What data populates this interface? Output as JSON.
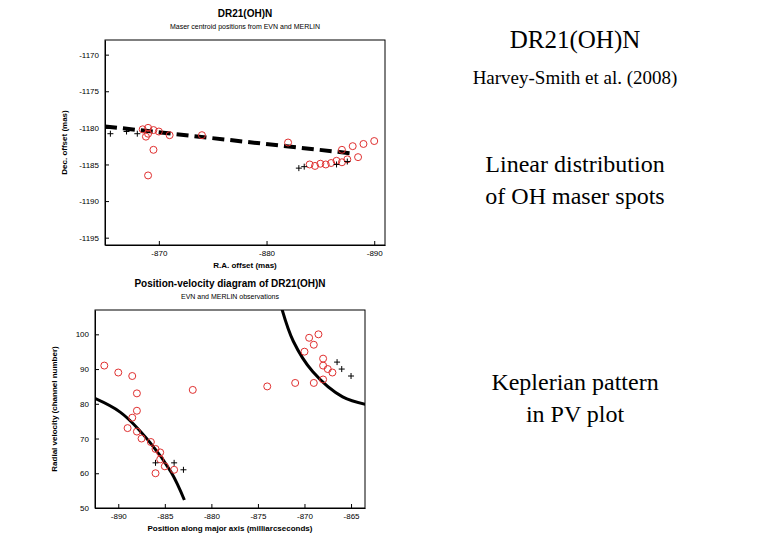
{
  "chart_data": [
    {
      "type": "scatter",
      "title": "DR21(OH)N",
      "subtitle": "Maser centroid positions from EVN and MERLIN",
      "x_label": "R.A. offset (mas)",
      "y_label": "Dec. offset (mas)",
      "xlim": [
        -865,
        -891
      ],
      "ylim": [
        -1196,
        -1168
      ],
      "xticks": [
        -870,
        -880,
        -890
      ],
      "yticks": [
        -1170,
        -1175,
        -1180,
        -1185,
        -1190,
        -1195
      ],
      "series": [
        {
          "color": "#e03030",
          "marker": "circle",
          "x": [
            -868.5,
            -869,
            -869.5,
            -869,
            -870,
            -868.8,
            -871,
            -874,
            -869.5,
            -869,
            -882,
            -884,
            -884.5,
            -885,
            -885.5,
            -886,
            -886.5,
            -887,
            -887.5,
            -888,
            -888.5,
            -889,
            -890,
            -887
          ],
          "values": [
            -1180.2,
            -1180,
            -1180.3,
            -1180.8,
            -1180.5,
            -1181.2,
            -1181,
            -1181,
            -1183,
            -1186.5,
            -1182,
            -1185,
            -1185.2,
            -1184.9,
            -1185,
            -1184.8,
            -1184.5,
            -1184.7,
            -1184.3,
            -1182.5,
            -1184,
            -1182.2,
            -1181.8,
            -1183
          ]
        },
        {
          "color": "#000000",
          "marker": "plus",
          "x": [
            -865.5,
            -867,
            -868,
            -883,
            -883.5,
            -886.5,
            -887.5
          ],
          "values": [
            -1180.8,
            -1180.5,
            -1180.8,
            -1185.5,
            -1185.3,
            -1185,
            -1184.6
          ]
        }
      ],
      "lines": [
        {
          "color": "#000000",
          "line_style": "dashed",
          "x": [
            -865,
            -888
          ],
          "y": [
            -1179.8,
            -1183.5
          ]
        }
      ]
    },
    {
      "type": "scatter",
      "title": "Position-velocity diagram of DR21(OH)N",
      "subtitle": "EVN and MERLIN observations",
      "x_label": "Position along major axis (milliarcseconds)",
      "y_label": "Radial velocity (channel number)",
      "xlim": [
        -892.5,
        -863.5
      ],
      "ylim": [
        50,
        107
      ],
      "xticks": [
        -890,
        -885,
        -880,
        -875,
        -870,
        -865
      ],
      "yticks": [
        50,
        60,
        70,
        80,
        90,
        100
      ],
      "series": [
        {
          "color": "#e03030",
          "marker": "circle",
          "x": [
            -891.5,
            -890,
            -888.5,
            -888,
            -888,
            -888.5,
            -889,
            -888,
            -887.5,
            -886.5,
            -886,
            -885.5,
            -885.5,
            -885,
            -886,
            -884,
            -882,
            -874,
            -871,
            -870,
            -869.5,
            -868.5,
            -869,
            -868,
            -868,
            -867.5,
            -867,
            -869,
            -868
          ],
          "values": [
            91,
            89,
            88,
            83,
            78,
            76,
            73,
            72,
            70,
            69,
            67,
            66,
            64,
            62,
            60,
            61,
            84,
            85,
            86,
            95,
            99,
            100,
            97,
            93,
            91,
            90,
            89,
            86,
            87
          ]
        },
        {
          "color": "#000000",
          "marker": "plus",
          "x": [
            -884,
            -883,
            -886,
            -866.5,
            -866,
            -865
          ],
          "values": [
            63,
            61,
            63,
            92,
            90,
            88
          ]
        }
      ],
      "lines": [
        {
          "color": "#000000",
          "line_style": "solid",
          "x": [
            -893.6,
            -889.8,
            -886.6,
            -884.3,
            -882.9
          ],
          "y": [
            82.8,
            77.6,
            68.9,
            60.2,
            52.3
          ]
        },
        {
          "color": "#000000",
          "line_style": "solid",
          "x": [
            -872.5,
            -871.2,
            -869.1,
            -865.9,
            -861.9
          ],
          "y": [
            108,
            98,
            89.2,
            82,
            79
          ]
        }
      ]
    }
  ],
  "slide": {
    "title": "DR21(OH)N",
    "reference": "Harvey-Smith et al. (2008)",
    "annotations": [
      [
        "Linear distribution",
        "of OH maser spots"
      ],
      [
        "Keplerian pattern",
        "in PV plot"
      ]
    ]
  }
}
